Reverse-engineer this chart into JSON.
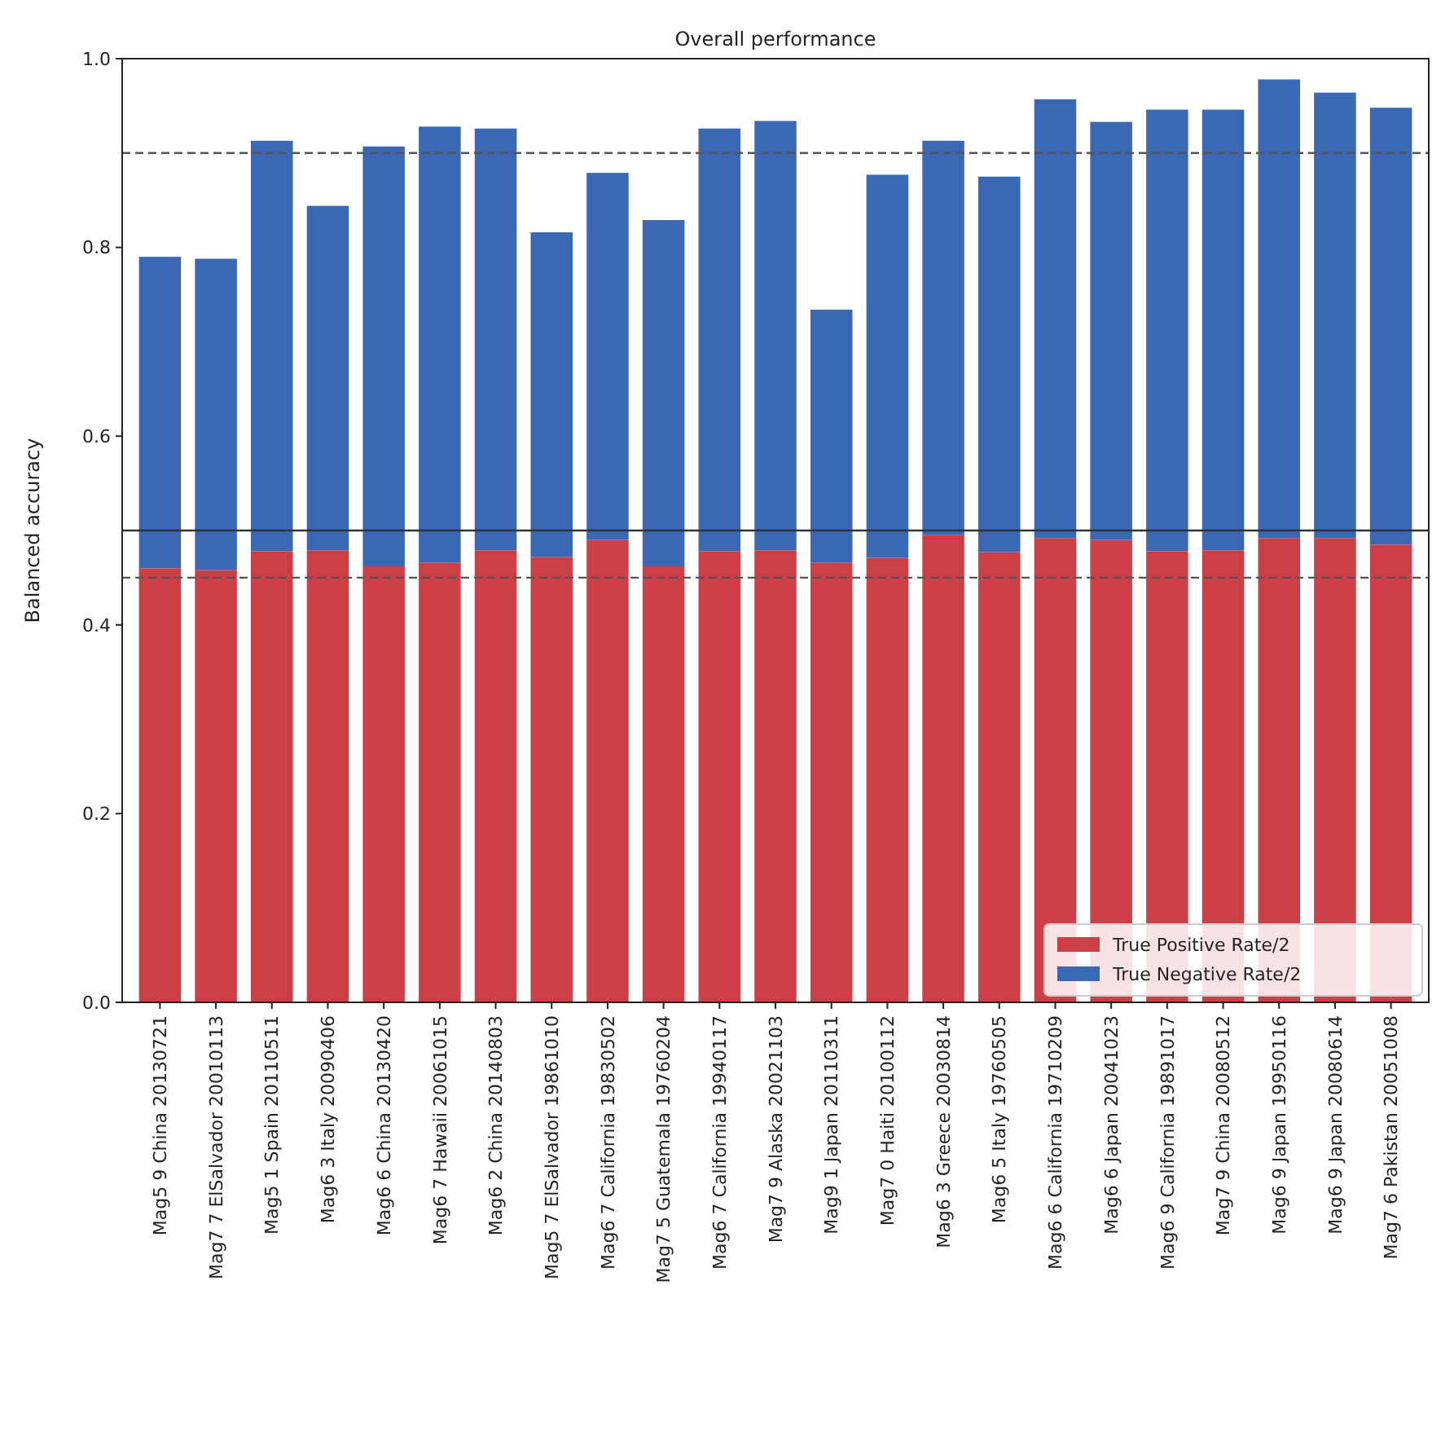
{
  "chart_data": {
    "type": "bar",
    "title": "Overall performance",
    "ylabel": "Balanced accuracy",
    "categories": [
      "Mag5 9 China 20130721",
      "Mag7 7 ElSalvador 20010113",
      "Mag5 1 Spain 20110511",
      "Mag6 3 Italy 20090406",
      "Mag6 6 China 20130420",
      "Mag6 7 Hawaii 20061015",
      "Mag6 2 China 20140803",
      "Mag5 7 ElSalvador 19861010",
      "Mag6 7 California 19830502",
      "Mag7 5 Guatemala 19760204",
      "Mag6 7 California 19940117",
      "Mag7 9 Alaska 20021103",
      "Mag9 1 Japan 20110311",
      "Mag7 0 Haiti 20100112",
      "Mag6 3 Greece 20030814",
      "Mag6 5 Italy 19760505",
      "Mag6 6 California 19710209",
      "Mag6 6 Japan 20041023",
      "Mag6 9 California 19891017",
      "Mag7 9 China 20080512",
      "Mag6 9 Japan 19950116",
      "Mag6 9 Japan 20080614",
      "Mag7 6 Pakistan 20051008"
    ],
    "stacked": true,
    "series": [
      {
        "name": "True Positive Rate/2",
        "color": "#cc3f45",
        "values": [
          0.46,
          0.458,
          0.478,
          0.479,
          0.462,
          0.466,
          0.479,
          0.472,
          0.49,
          0.462,
          0.478,
          0.479,
          0.466,
          0.471,
          0.495,
          0.477,
          0.492,
          0.49,
          0.478,
          0.479,
          0.492,
          0.492,
          0.485
        ]
      },
      {
        "name": "True Negative Rate/2",
        "color": "#3b68b5",
        "values": [
          0.33,
          0.33,
          0.435,
          0.365,
          0.445,
          0.462,
          0.447,
          0.344,
          0.389,
          0.367,
          0.448,
          0.455,
          0.268,
          0.406,
          0.418,
          0.398,
          0.465,
          0.443,
          0.468,
          0.467,
          0.486,
          0.472,
          0.463
        ]
      }
    ],
    "ylim": [
      0,
      1
    ],
    "yticks": [
      {
        "value": 0,
        "label": "0.0"
      },
      {
        "value": 0.2,
        "label": "0.2"
      },
      {
        "value": 0.4,
        "label": "0.4"
      },
      {
        "value": 0.6,
        "label": "0.6"
      },
      {
        "value": 0.8,
        "label": "0.8"
      },
      {
        "value": 1,
        "label": "1.0"
      }
    ],
    "ref_lines": [
      {
        "axis": "y",
        "value": 0.9,
        "color": "#555555",
        "line_style": "dashed"
      },
      {
        "axis": "y",
        "value": 0.5,
        "color": "#333333",
        "line_style": "solid"
      },
      {
        "axis": "y",
        "value": 0.45,
        "color": "#555555",
        "line_style": "dashed"
      }
    ],
    "legend": "bottom right",
    "grid": false
  }
}
